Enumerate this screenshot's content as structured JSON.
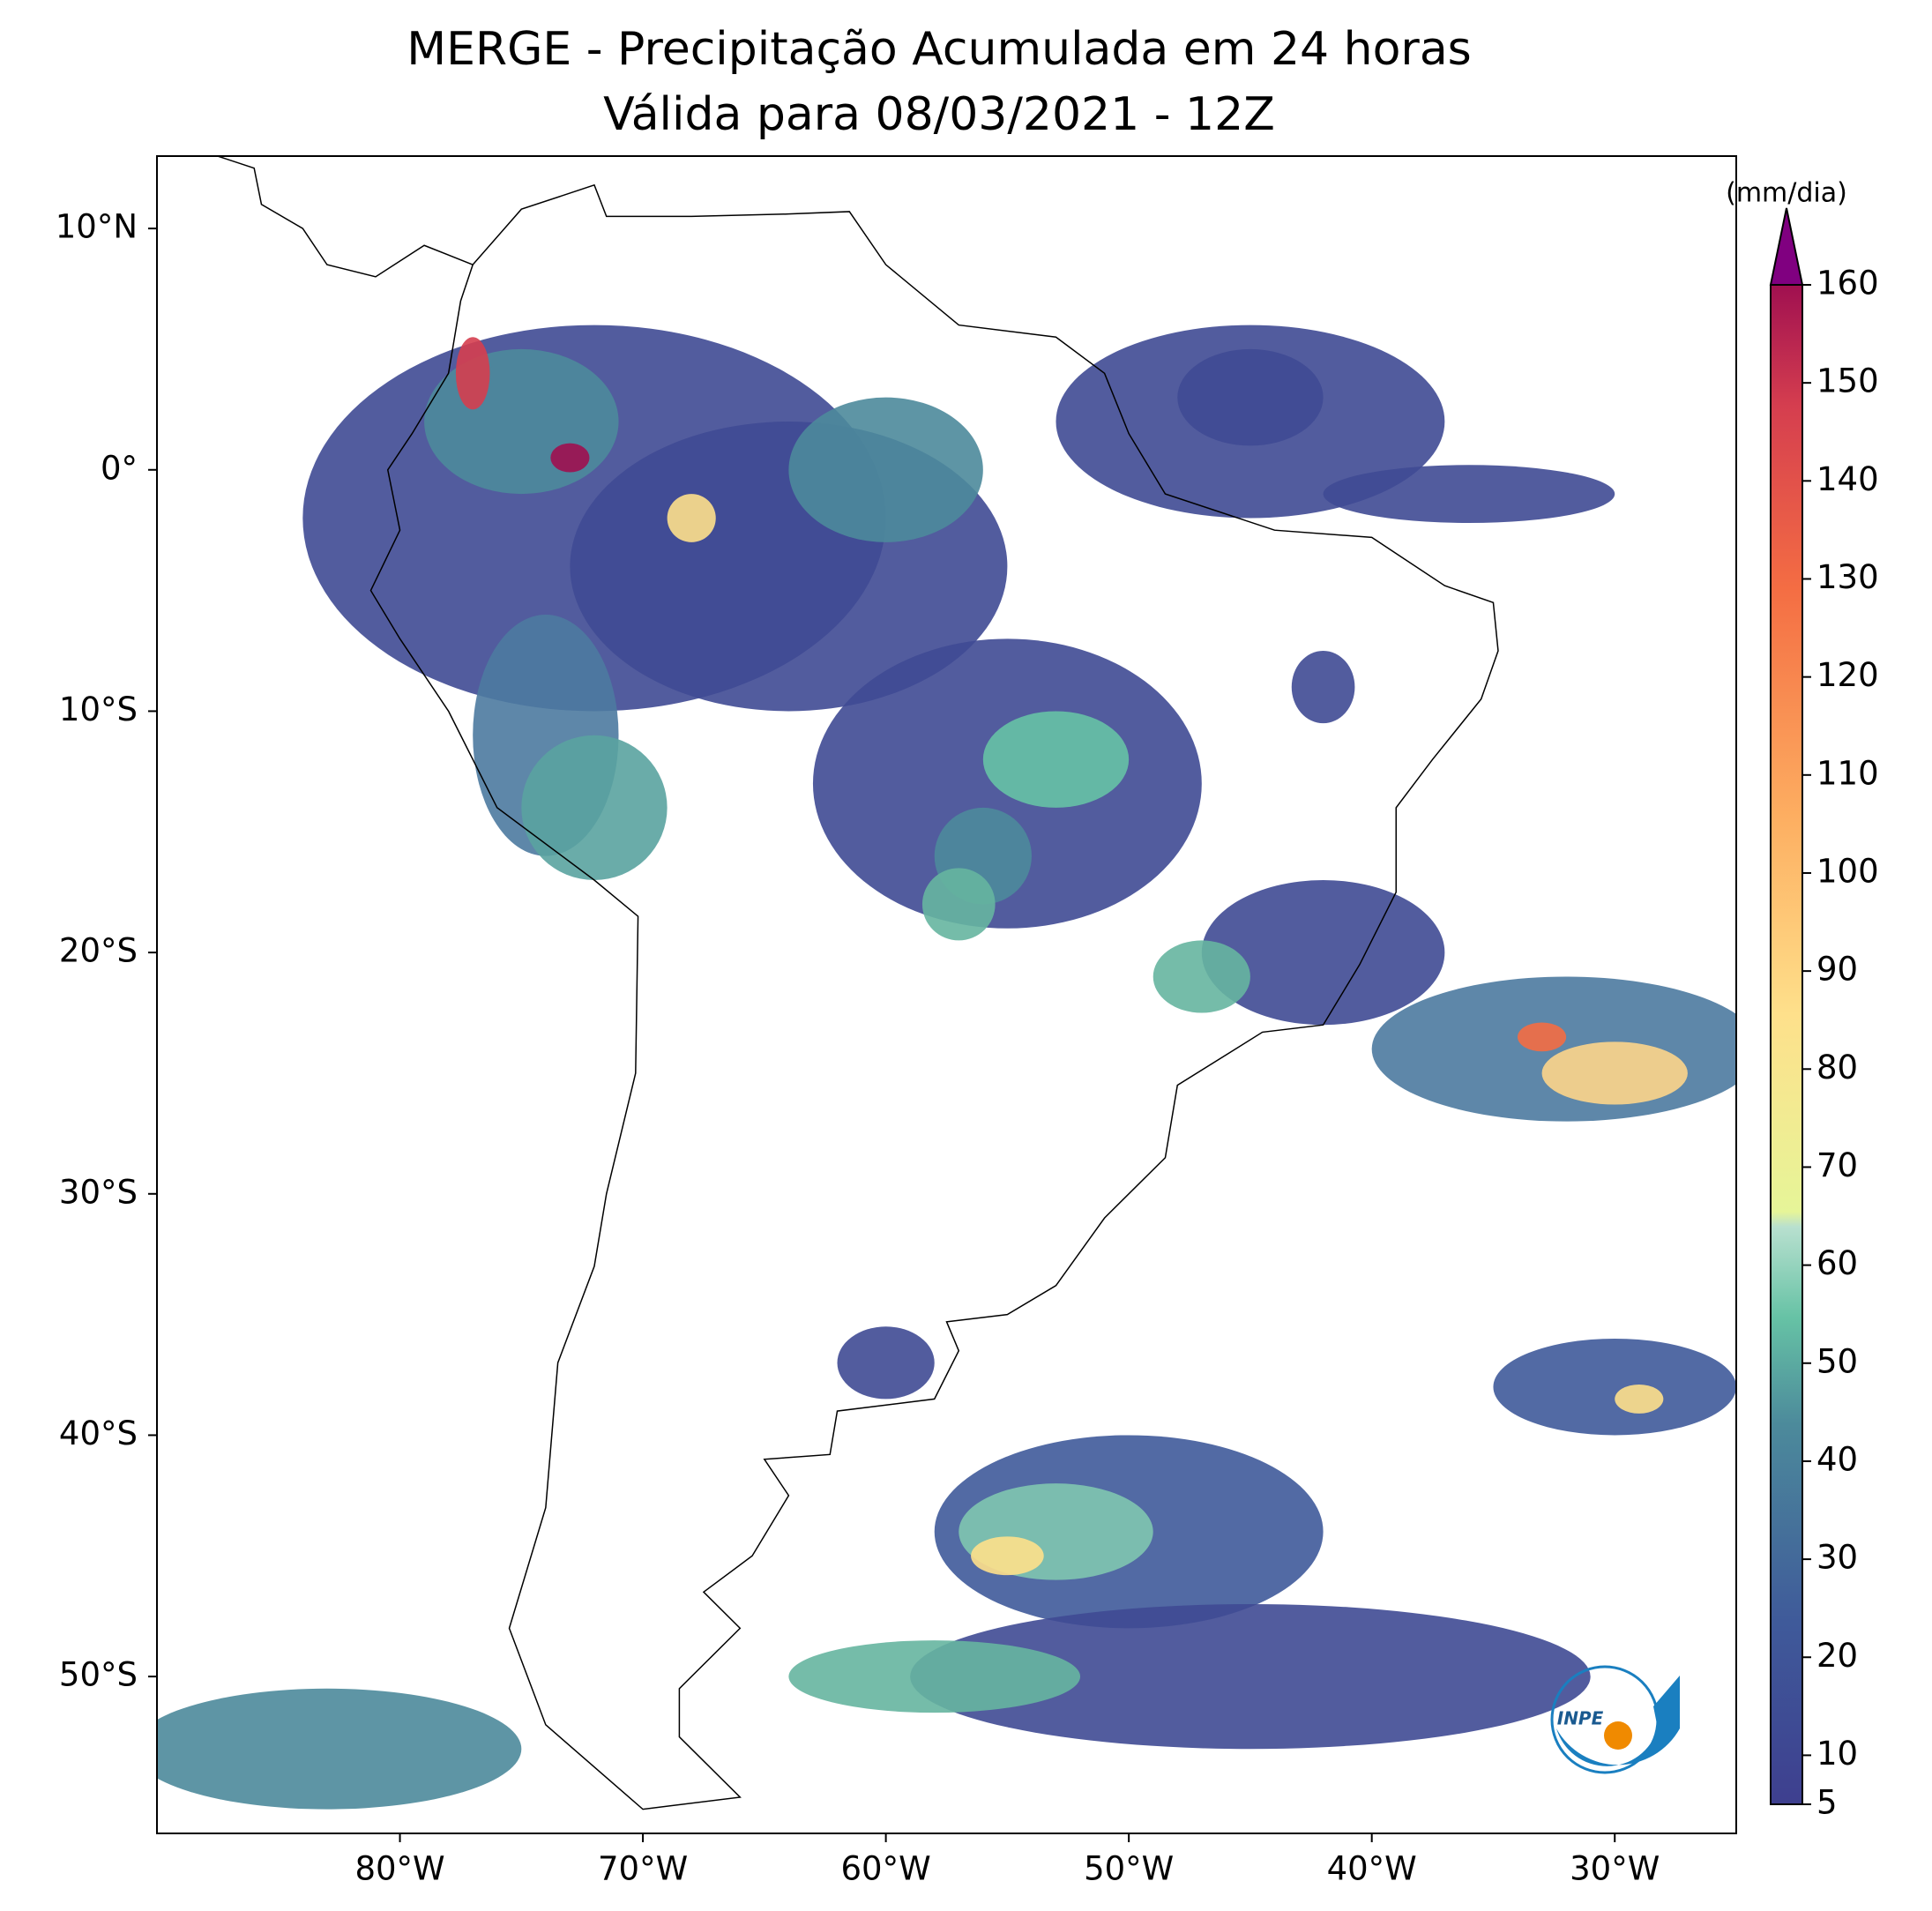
{
  "map": {
    "title": "MERGE - Precipitação Acumulada em 24 horas",
    "subtitle": "Válida para 08/03/2021 - 12Z",
    "lon_ticks": [
      {
        "value": -80,
        "label": "80°W"
      },
      {
        "value": -70,
        "label": "70°W"
      },
      {
        "value": -60,
        "label": "60°W"
      },
      {
        "value": -50,
        "label": "50°W"
      },
      {
        "value": -40,
        "label": "40°W"
      },
      {
        "value": -30,
        "label": "30°W"
      }
    ],
    "lat_ticks": [
      {
        "value": 10,
        "label": "10°N"
      },
      {
        "value": 0,
        "label": "0°"
      },
      {
        "value": -10,
        "label": "10°S"
      },
      {
        "value": -20,
        "label": "20°S"
      },
      {
        "value": -30,
        "label": "30°S"
      },
      {
        "value": -40,
        "label": "40°S"
      },
      {
        "value": -50,
        "label": "50°S"
      }
    ],
    "colorbar": {
      "label": "(mm/dia)",
      "lim": [
        5,
        160
      ],
      "ticks": [
        5,
        10,
        20,
        30,
        40,
        50,
        60,
        70,
        80,
        90,
        100,
        110,
        120,
        130,
        140,
        150,
        160
      ]
    },
    "logo": "INPE"
  }
}
